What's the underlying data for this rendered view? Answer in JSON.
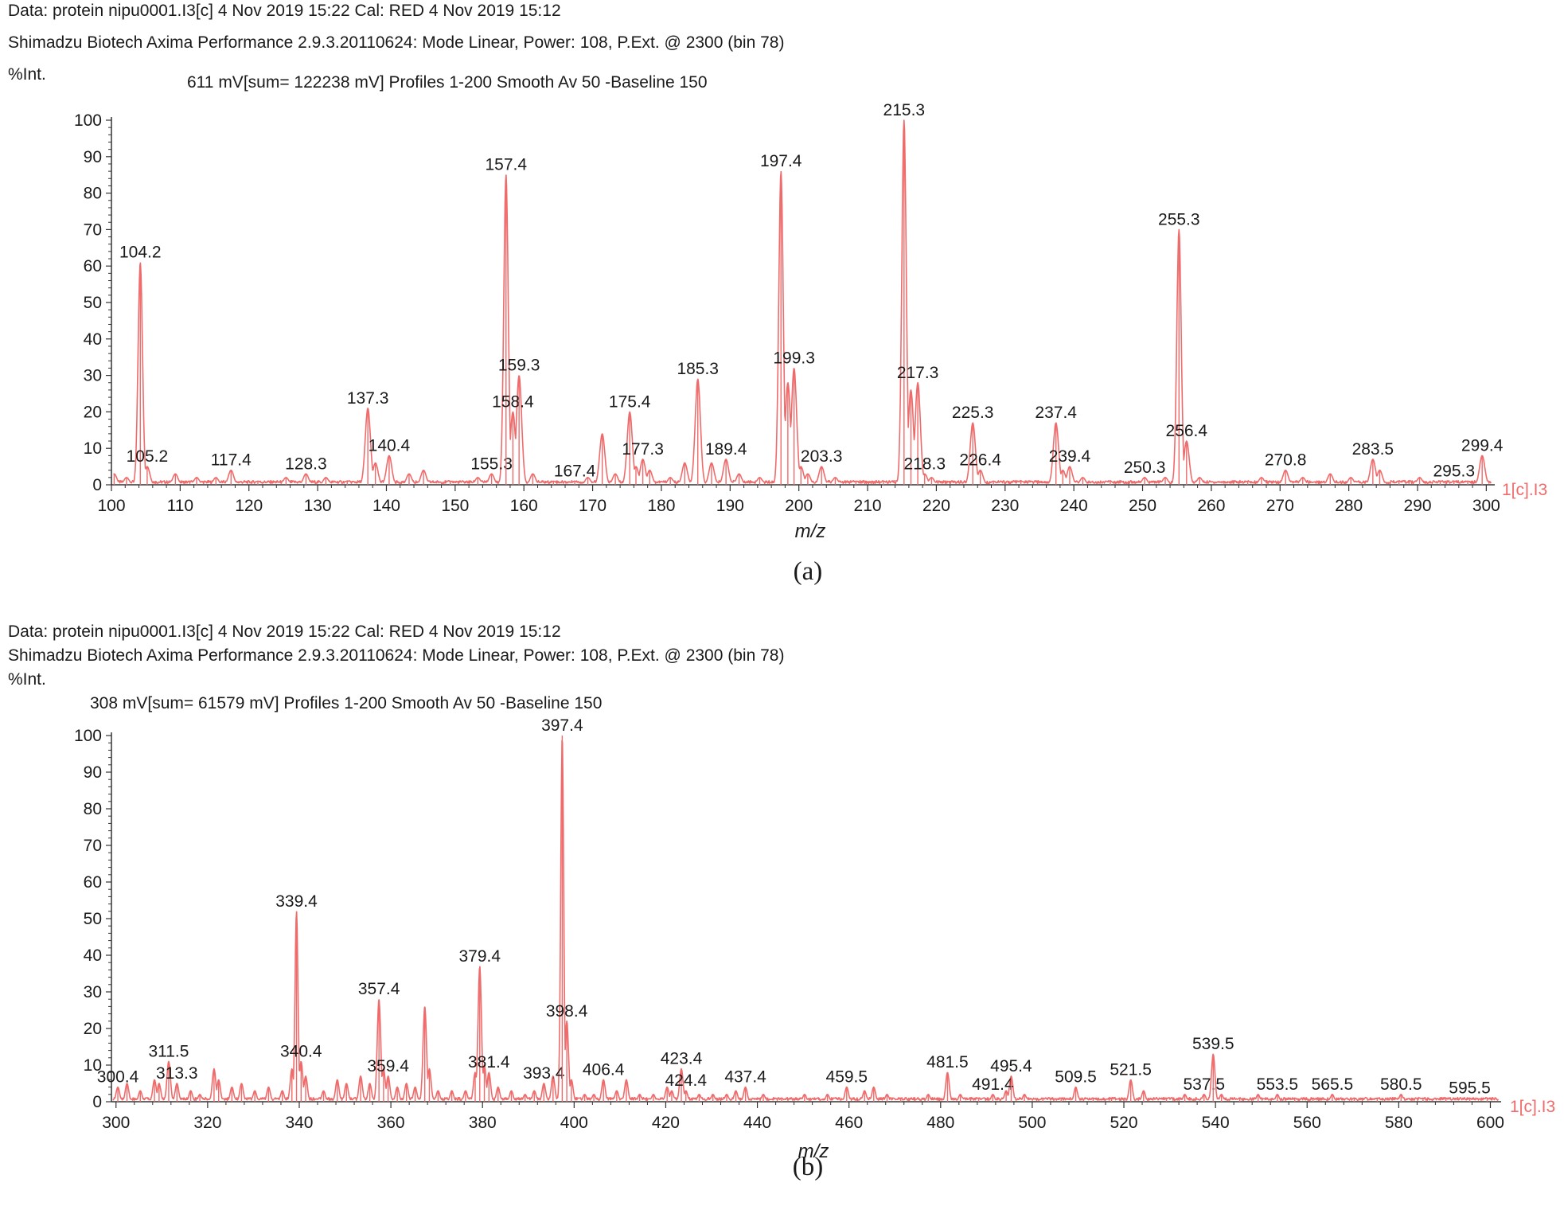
{
  "chart_data": [
    {
      "type": "line",
      "caption": "(a)",
      "header": [
        "Data: protein nipu0001.I3[c] 4 Nov 2019 15:22 Cal: RED 4 Nov 2019 15:12",
        "Shimadzu Biotech Axima Performance 2.9.3.20110624: Mode Linear, Power: 108, P.Ext. @ 2300 (bin 78)",
        "%Int.",
        "611 mV[sum= 122238 mV]  Profiles 1-200 Smooth Av 50 -Baseline 150"
      ],
      "xlabel": "m/z",
      "xlim": [
        100,
        301
      ],
      "ylim": [
        0,
        100
      ],
      "xticks": [
        100,
        110,
        120,
        130,
        140,
        150,
        160,
        170,
        180,
        190,
        200,
        210,
        220,
        230,
        240,
        250,
        260,
        270,
        280,
        290,
        300
      ],
      "yticks": [
        0,
        10,
        20,
        30,
        40,
        50,
        60,
        70,
        80,
        90,
        100
      ],
      "series_label": "1[c].I3",
      "color": "#ef6b6b",
      "peaks": [
        {
          "x": 100.4,
          "y": 3
        },
        {
          "x": 102.2,
          "y": 2
        },
        {
          "x": 104.2,
          "y": 61,
          "label": "104.2"
        },
        {
          "x": 105.2,
          "y": 5,
          "label": "105.2"
        },
        {
          "x": 109.3,
          "y": 3
        },
        {
          "x": 112.4,
          "y": 2
        },
        {
          "x": 115.2,
          "y": 2
        },
        {
          "x": 117.4,
          "y": 4,
          "label": "117.4"
        },
        {
          "x": 121.3,
          "y": 1
        },
        {
          "x": 125.4,
          "y": 2
        },
        {
          "x": 128.3,
          "y": 3,
          "label": "128.3"
        },
        {
          "x": 131.2,
          "y": 2
        },
        {
          "x": 134.3,
          "y": 1
        },
        {
          "x": 137.3,
          "y": 21,
          "label": "137.3"
        },
        {
          "x": 138.4,
          "y": 6
        },
        {
          "x": 140.4,
          "y": 8,
          "label": "140.4"
        },
        {
          "x": 143.3,
          "y": 3
        },
        {
          "x": 145.4,
          "y": 4
        },
        {
          "x": 149.3,
          "y": 1
        },
        {
          "x": 153.3,
          "y": 2
        },
        {
          "x": 155.3,
          "y": 3,
          "label": "155.3"
        },
        {
          "x": 157.4,
          "y": 85,
          "label": "157.4"
        },
        {
          "x": 158.4,
          "y": 20,
          "label": "158.4"
        },
        {
          "x": 159.3,
          "y": 30,
          "label": "159.3"
        },
        {
          "x": 161.3,
          "y": 3
        },
        {
          "x": 164.3,
          "y": 1
        },
        {
          "x": 167.4,
          "y": 1,
          "label": "167.4"
        },
        {
          "x": 169.3,
          "y": 2
        },
        {
          "x": 171.4,
          "y": 14
        },
        {
          "x": 173.3,
          "y": 3
        },
        {
          "x": 175.4,
          "y": 20,
          "label": "175.4"
        },
        {
          "x": 176.3,
          "y": 5
        },
        {
          "x": 177.3,
          "y": 7,
          "label": "177.3"
        },
        {
          "x": 178.3,
          "y": 4
        },
        {
          "x": 181.3,
          "y": 2
        },
        {
          "x": 183.4,
          "y": 6
        },
        {
          "x": 185.3,
          "y": 29,
          "label": "185.3"
        },
        {
          "x": 187.3,
          "y": 6
        },
        {
          "x": 189.4,
          "y": 7,
          "label": "189.4"
        },
        {
          "x": 191.3,
          "y": 3
        },
        {
          "x": 194.3,
          "y": 2
        },
        {
          "x": 197.4,
          "y": 86,
          "label": "197.4"
        },
        {
          "x": 198.4,
          "y": 28
        },
        {
          "x": 199.3,
          "y": 32,
          "label": "199.3"
        },
        {
          "x": 200.3,
          "y": 5
        },
        {
          "x": 201.3,
          "y": 3
        },
        {
          "x": 203.3,
          "y": 5,
          "label": "203.3"
        },
        {
          "x": 205.3,
          "y": 2
        },
        {
          "x": 208.3,
          "y": 1
        },
        {
          "x": 212.3,
          "y": 1
        },
        {
          "x": 215.3,
          "y": 100,
          "label": "215.3"
        },
        {
          "x": 216.3,
          "y": 26
        },
        {
          "x": 217.3,
          "y": 28,
          "label": "217.3"
        },
        {
          "x": 218.3,
          "y": 3,
          "label": "218.3"
        },
        {
          "x": 219.3,
          "y": 2
        },
        {
          "x": 225.3,
          "y": 17,
          "label": "225.3"
        },
        {
          "x": 226.4,
          "y": 4,
          "label": "226.4"
        },
        {
          "x": 228.3,
          "y": 1
        },
        {
          "x": 232.3,
          "y": 1
        },
        {
          "x": 237.4,
          "y": 17,
          "label": "237.4"
        },
        {
          "x": 238.4,
          "y": 4
        },
        {
          "x": 239.4,
          "y": 5,
          "label": "239.4"
        },
        {
          "x": 241.3,
          "y": 2
        },
        {
          "x": 245.3,
          "y": 1
        },
        {
          "x": 250.3,
          "y": 2,
          "label": "250.3"
        },
        {
          "x": 253.3,
          "y": 2
        },
        {
          "x": 255.3,
          "y": 70,
          "label": "255.3"
        },
        {
          "x": 256.4,
          "y": 12,
          "label": "256.4"
        },
        {
          "x": 258.3,
          "y": 2
        },
        {
          "x": 265.3,
          "y": 1
        },
        {
          "x": 267.3,
          "y": 2
        },
        {
          "x": 270.8,
          "y": 4,
          "label": "270.8"
        },
        {
          "x": 273.3,
          "y": 2
        },
        {
          "x": 277.3,
          "y": 3
        },
        {
          "x": 280.3,
          "y": 2
        },
        {
          "x": 283.5,
          "y": 7,
          "label": "283.5"
        },
        {
          "x": 284.5,
          "y": 4
        },
        {
          "x": 287.3,
          "y": 1
        },
        {
          "x": 290.3,
          "y": 2
        },
        {
          "x": 293.3,
          "y": 1
        },
        {
          "x": 295.3,
          "y": 1,
          "label": "295.3"
        },
        {
          "x": 297.3,
          "y": 1
        },
        {
          "x": 299.4,
          "y": 8,
          "label": "299.4"
        }
      ]
    },
    {
      "type": "line",
      "caption": "(b)",
      "header": [
        "Data: protein nipu0001.I3[c] 4 Nov 2019 15:22 Cal: RED 4 Nov 2019 15:12",
        "Shimadzu Biotech Axima Performance 2.9.3.20110624: Mode Linear, Power: 108, P.Ext. @ 2300 (bin 78)",
        "%Int.",
        "308 mV[sum= 61579 mV]  Profiles 1-200 Smooth Av 50 -Baseline 150"
      ],
      "xlabel": "m/z",
      "xlim": [
        299,
        602
      ],
      "ylim": [
        0,
        100
      ],
      "xticks": [
        300,
        320,
        340,
        360,
        380,
        400,
        420,
        440,
        460,
        480,
        500,
        520,
        540,
        560,
        580,
        600
      ],
      "yticks": [
        0,
        10,
        20,
        30,
        40,
        50,
        60,
        70,
        80,
        90,
        100
      ],
      "series_label": "1[c].I3",
      "color": "#ef6b6b",
      "peaks": [
        {
          "x": 300.4,
          "y": 4,
          "label": "300.4"
        },
        {
          "x": 302.4,
          "y": 5
        },
        {
          "x": 305.3,
          "y": 3
        },
        {
          "x": 308.4,
          "y": 6
        },
        {
          "x": 309.4,
          "y": 5
        },
        {
          "x": 311.5,
          "y": 11,
          "label": "311.5"
        },
        {
          "x": 313.3,
          "y": 5,
          "label": "313.3"
        },
        {
          "x": 316.3,
          "y": 3
        },
        {
          "x": 318.3,
          "y": 2
        },
        {
          "x": 321.4,
          "y": 9
        },
        {
          "x": 322.4,
          "y": 6
        },
        {
          "x": 325.3,
          "y": 4
        },
        {
          "x": 327.4,
          "y": 5
        },
        {
          "x": 330.3,
          "y": 3
        },
        {
          "x": 333.3,
          "y": 4
        },
        {
          "x": 336.3,
          "y": 3
        },
        {
          "x": 338.4,
          "y": 9
        },
        {
          "x": 339.4,
          "y": 52,
          "label": "339.4"
        },
        {
          "x": 340.4,
          "y": 11,
          "label": "340.4"
        },
        {
          "x": 341.4,
          "y": 7
        },
        {
          "x": 345.3,
          "y": 3
        },
        {
          "x": 348.3,
          "y": 6
        },
        {
          "x": 350.3,
          "y": 5
        },
        {
          "x": 353.4,
          "y": 7
        },
        {
          "x": 355.4,
          "y": 5
        },
        {
          "x": 357.4,
          "y": 28,
          "label": "357.4"
        },
        {
          "x": 358.4,
          "y": 9
        },
        {
          "x": 359.4,
          "y": 7,
          "label": "359.4"
        },
        {
          "x": 361.4,
          "y": 4
        },
        {
          "x": 363.4,
          "y": 5
        },
        {
          "x": 365.3,
          "y": 4
        },
        {
          "x": 367.4,
          "y": 26
        },
        {
          "x": 368.4,
          "y": 9
        },
        {
          "x": 370.3,
          "y": 3
        },
        {
          "x": 373.3,
          "y": 3
        },
        {
          "x": 376.3,
          "y": 3
        },
        {
          "x": 378.4,
          "y": 8
        },
        {
          "x": 379.4,
          "y": 37,
          "label": "379.4"
        },
        {
          "x": 380.4,
          "y": 10
        },
        {
          "x": 381.4,
          "y": 8,
          "label": "381.4"
        },
        {
          "x": 383.4,
          "y": 4
        },
        {
          "x": 386.3,
          "y": 3
        },
        {
          "x": 389.3,
          "y": 2
        },
        {
          "x": 391.3,
          "y": 3
        },
        {
          "x": 393.4,
          "y": 5,
          "label": "393.4"
        },
        {
          "x": 395.4,
          "y": 7
        },
        {
          "x": 397.4,
          "y": 100,
          "label": "397.4"
        },
        {
          "x": 398.4,
          "y": 22,
          "label": "398.4"
        },
        {
          "x": 399.4,
          "y": 6
        },
        {
          "x": 402.3,
          "y": 2
        },
        {
          "x": 404.3,
          "y": 2
        },
        {
          "x": 406.4,
          "y": 6,
          "label": "406.4"
        },
        {
          "x": 409.3,
          "y": 3
        },
        {
          "x": 411.4,
          "y": 6
        },
        {
          "x": 414.3,
          "y": 2
        },
        {
          "x": 417.3,
          "y": 2
        },
        {
          "x": 420.3,
          "y": 4
        },
        {
          "x": 421.3,
          "y": 3
        },
        {
          "x": 423.4,
          "y": 9,
          "label": "423.4"
        },
        {
          "x": 424.4,
          "y": 3,
          "label": "424.4"
        },
        {
          "x": 427.3,
          "y": 2
        },
        {
          "x": 430.3,
          "y": 2
        },
        {
          "x": 433.3,
          "y": 2
        },
        {
          "x": 435.3,
          "y": 3
        },
        {
          "x": 437.4,
          "y": 4,
          "label": "437.4"
        },
        {
          "x": 441.3,
          "y": 2
        },
        {
          "x": 445.3,
          "y": 1
        },
        {
          "x": 450.3,
          "y": 2
        },
        {
          "x": 455.3,
          "y": 2
        },
        {
          "x": 459.5,
          "y": 4,
          "label": "459.5"
        },
        {
          "x": 463.4,
          "y": 3
        },
        {
          "x": 465.4,
          "y": 4
        },
        {
          "x": 468.3,
          "y": 2
        },
        {
          "x": 471.3,
          "y": 1
        },
        {
          "x": 477.3,
          "y": 2
        },
        {
          "x": 481.5,
          "y": 8,
          "label": "481.5"
        },
        {
          "x": 484.3,
          "y": 2
        },
        {
          "x": 488.3,
          "y": 1
        },
        {
          "x": 491.4,
          "y": 2,
          "label": "491.4"
        },
        {
          "x": 494.3,
          "y": 3
        },
        {
          "x": 495.4,
          "y": 7,
          "label": "495.4"
        },
        {
          "x": 498.3,
          "y": 2
        },
        {
          "x": 502.3,
          "y": 1
        },
        {
          "x": 506.3,
          "y": 1
        },
        {
          "x": 509.5,
          "y": 4,
          "label": "509.5"
        },
        {
          "x": 513.3,
          "y": 1
        },
        {
          "x": 517.3,
          "y": 1
        },
        {
          "x": 521.5,
          "y": 6,
          "label": "521.5"
        },
        {
          "x": 524.3,
          "y": 3
        },
        {
          "x": 529.3,
          "y": 1
        },
        {
          "x": 533.3,
          "y": 2
        },
        {
          "x": 537.5,
          "y": 2,
          "label": "537.5"
        },
        {
          "x": 539.5,
          "y": 13,
          "label": "539.5"
        },
        {
          "x": 541.3,
          "y": 2
        },
        {
          "x": 545.3,
          "y": 1
        },
        {
          "x": 549.3,
          "y": 2
        },
        {
          "x": 553.5,
          "y": 2,
          "label": "553.5"
        },
        {
          "x": 557.3,
          "y": 1
        },
        {
          "x": 561.3,
          "y": 1
        },
        {
          "x": 565.5,
          "y": 2,
          "label": "565.5"
        },
        {
          "x": 570.3,
          "y": 1
        },
        {
          "x": 575.3,
          "y": 1
        },
        {
          "x": 580.5,
          "y": 2,
          "label": "580.5"
        },
        {
          "x": 585.3,
          "y": 1
        },
        {
          "x": 590.3,
          "y": 1
        },
        {
          "x": 595.5,
          "y": 1,
          "label": "595.5"
        },
        {
          "x": 599.3,
          "y": 1
        }
      ]
    }
  ]
}
